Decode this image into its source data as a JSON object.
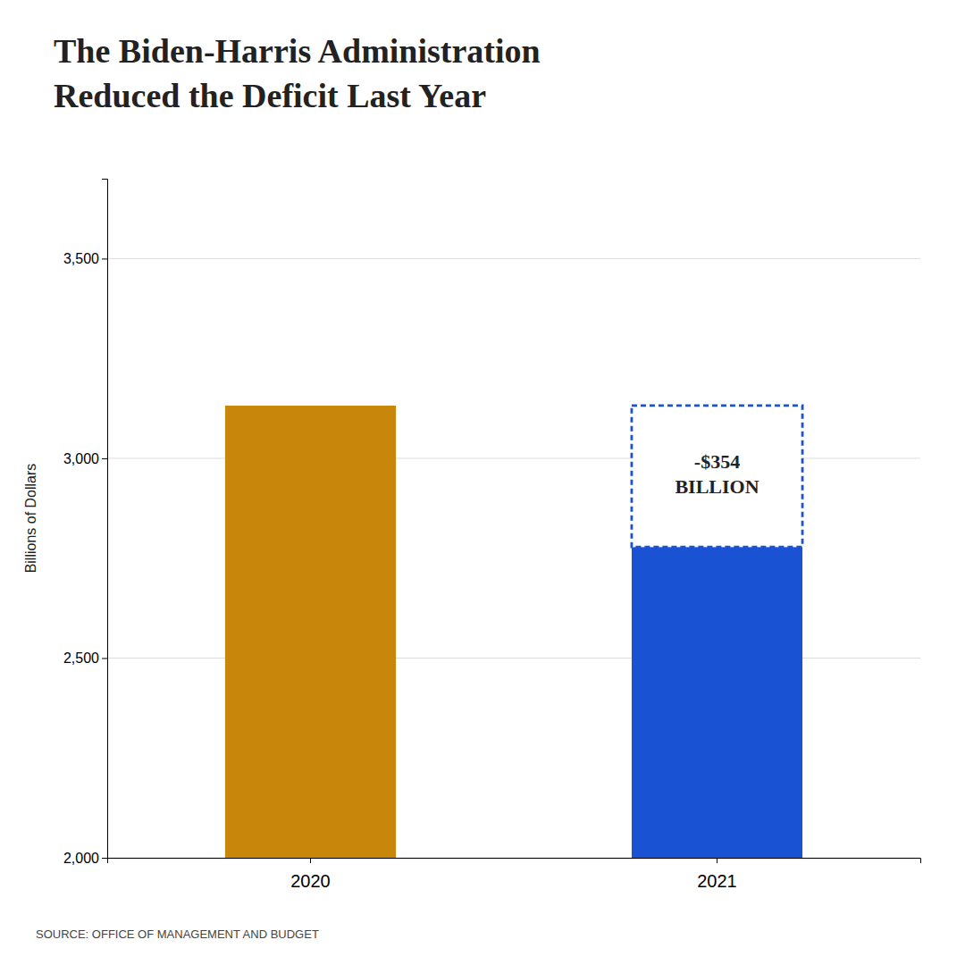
{
  "chart_data": {
    "type": "bar",
    "title": [
      "The Biden-Harris Administration",
      "Reduced the Deficit Last Year"
    ],
    "categories": [
      "2020",
      "2021"
    ],
    "values": [
      3132,
      2778
    ],
    "colors": [
      "#C8860A",
      "#1A52D4"
    ],
    "ylabel": "Billions of Dollars",
    "ylim": [
      2000,
      3700
    ],
    "yticks": [
      {
        "value": 2000,
        "label": "2,000"
      },
      {
        "value": 2500,
        "label": "2,500"
      },
      {
        "value": 3000,
        "label": "3,000"
      },
      {
        "value": 3500,
        "label": "3,500"
      }
    ],
    "grid": true,
    "annotation": {
      "text": [
        "-$354",
        "BILLION"
      ],
      "range": [
        2778,
        3132
      ],
      "color": "#1A52D4"
    },
    "source": "SOURCE: OFFICE OF MANAGEMENT AND BUDGET"
  }
}
